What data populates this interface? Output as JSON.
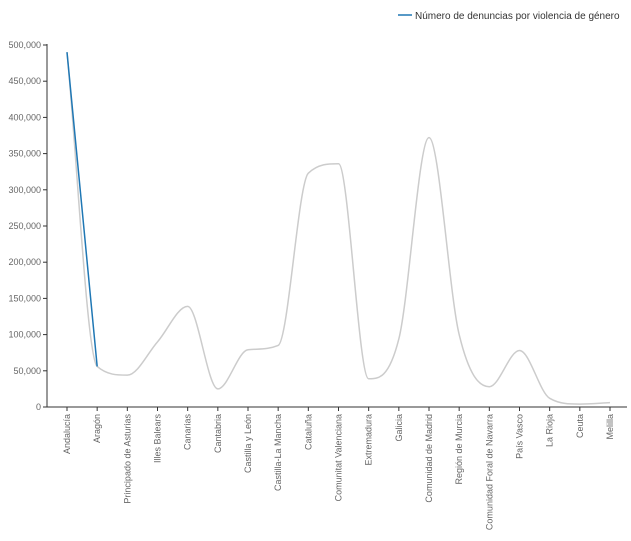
{
  "chart_data": {
    "type": "line",
    "title": "",
    "xlabel": "",
    "ylabel": "",
    "categories": [
      "Andalucía",
      "Aragón",
      "Principado de Asturias",
      "Illes Balears",
      "Canarias",
      "Cantabria",
      "Castilla y León",
      "Castilla-La Mancha",
      "Cataluña",
      "Comunitat Valenciana",
      "Extremadura",
      "Galicia",
      "Comunidad de Madrid",
      "Región de Murcia",
      "Comunidad Foral de Navarra",
      "País Vasco",
      "La Rioja",
      "Ceuta",
      "Melilla"
    ],
    "series": [
      {
        "name": "Número de denuncias por violencia de género",
        "values": [
          490000,
          56000,
          44000,
          90000,
          139000,
          25000,
          79000,
          85000,
          323000,
          336000,
          39000,
          94000,
          372000,
          100000,
          28000,
          78000,
          12000,
          4000,
          6000
        ],
        "color": "#1f77b4"
      }
    ],
    "highlight_range": [
      0,
      1
    ],
    "context_line_color": "#cccccc",
    "ylim": [
      0,
      500000
    ],
    "yticks": [
      0,
      50000,
      100000,
      150000,
      200000,
      250000,
      300000,
      350000,
      400000,
      450000,
      500000
    ],
    "ytick_labels": [
      "0",
      "50,000",
      "100,000",
      "150,000",
      "200,000",
      "250,000",
      "300,000",
      "350,000",
      "400,000",
      "450,000",
      "500,000"
    ],
    "grid": false,
    "legend_position": "top-right"
  }
}
